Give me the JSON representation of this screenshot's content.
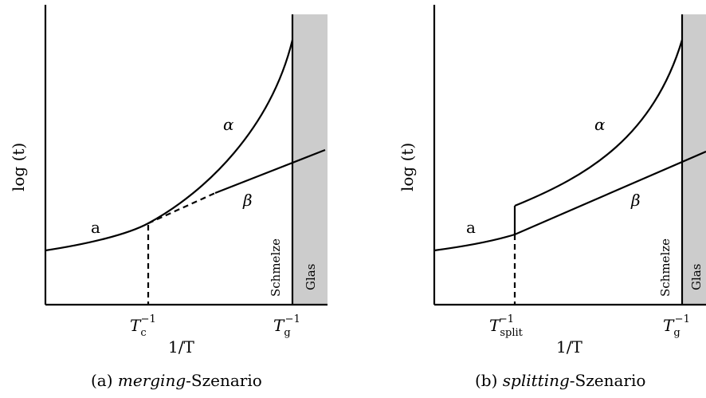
{
  "panel_a": {
    "ylabel": "log (t)",
    "xlabel": "1/T",
    "label_a": "a",
    "label_alpha": "α",
    "label_beta": "β",
    "region_melt": "Schmelze",
    "region_glass": "Glas",
    "tick_c_base": "T",
    "tick_c_sub": "c",
    "tick_c_sup": "−1",
    "tick_g_base": "T",
    "tick_g_sub": "g",
    "tick_g_sup": "−1",
    "caption_prefix": "(a) ",
    "caption_em": "merging",
    "caption_suffix": "-Szenario"
  },
  "panel_b": {
    "ylabel": "log (t)",
    "xlabel": "1/T",
    "label_a": "a",
    "label_alpha": "α",
    "label_beta": "β",
    "region_melt": "Schmelze",
    "region_glass": "Glas",
    "tick_s_base": "T",
    "tick_s_sub": "split",
    "tick_s_sup": "−1",
    "tick_g_base": "T",
    "tick_g_sub": "g",
    "tick_g_sup": "−1",
    "caption_prefix": "(b) ",
    "caption_em": "splitting",
    "caption_suffix": "-Szenario"
  }
}
